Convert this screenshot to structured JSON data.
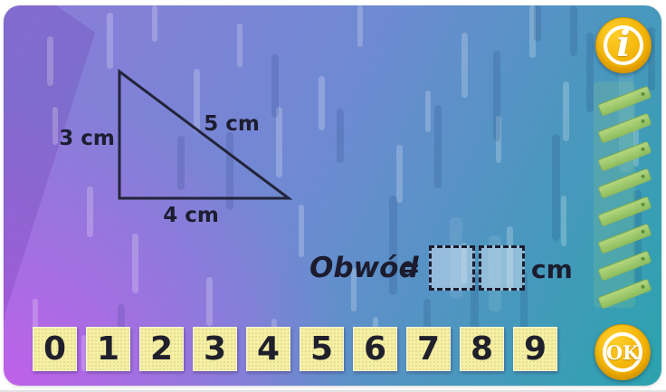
{
  "figure": {
    "type": "right-triangle",
    "labels": {
      "left": "3 cm",
      "hypotenuse": "5 cm",
      "bottom": "4 cm"
    }
  },
  "answer": {
    "label": "Obwód",
    "equals": "=",
    "unit": "cm",
    "box1": "",
    "box2": ""
  },
  "keypad": {
    "keys": [
      "0",
      "1",
      "2",
      "3",
      "4",
      "5",
      "6",
      "7",
      "8",
      "9"
    ]
  },
  "buttons": {
    "info": "i",
    "ok": "OK"
  },
  "colors": {
    "ink": "#1d1d30",
    "accent_gold": "#f0ae00",
    "key_yellow": "#f4f0a4",
    "ladder_green": "#9fc468",
    "bg_purple": "#b564e0",
    "bg_periwinkle": "#8b7dda",
    "bg_blue": "#4e82c4",
    "bg_teal": "#27a5ad"
  }
}
